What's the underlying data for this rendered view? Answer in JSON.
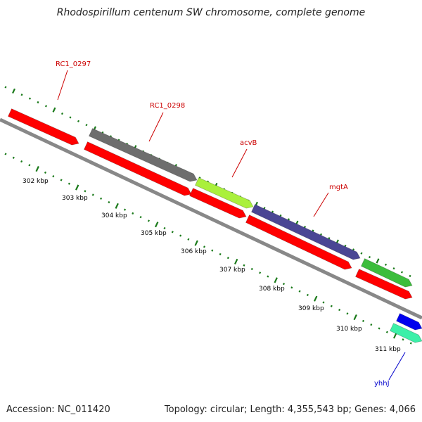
{
  "title": "Rhodospirillum centenum SW chromosome, complete genome",
  "footer": {
    "accession": "Accession: NC_011420",
    "summary": "Topology: circular; Length: 4,355,543 bp; Genes: 4,066"
  },
  "ticks": {
    "unit": "kbp",
    "labels": [
      "302 kbp",
      "303 kbp",
      "304 kbp",
      "305 kbp",
      "306 kbp",
      "307 kbp",
      "308 kbp",
      "309 kbp",
      "310 kbp",
      "311 kbp"
    ]
  },
  "colors": {
    "backbone": "#888888",
    "tick": "#1a7a1a",
    "red_gene": "#ff0000",
    "gray_gene": "#6e6e6e",
    "lime_gene": "#aaf03c",
    "purple_gene": "#4a4694",
    "green_gene": "#3cbd3c",
    "blue_gene": "#0000ee",
    "teal_gene": "#3cf0a8",
    "red_label": "#cc0000",
    "blue_label": "#0000cc"
  },
  "genes": [
    {
      "label": "RC1_0297",
      "strand": "minus",
      "color": "red"
    },
    {
      "label": "RC1_0298",
      "strand": "minus",
      "color": "red"
    },
    {
      "label": "acvB",
      "strand": "minus",
      "color": "red"
    },
    {
      "label": "mgtA",
      "strand": "minus",
      "color": "red"
    },
    {
      "label": "",
      "strand": "minus",
      "color": "red"
    },
    {
      "label": "",
      "strand": "plus",
      "color": "gray"
    },
    {
      "label": "",
      "strand": "plus",
      "color": "lime"
    },
    {
      "label": "",
      "strand": "plus",
      "color": "purple"
    },
    {
      "label": "",
      "strand": "plus",
      "color": "green"
    },
    {
      "label": "",
      "strand": "plus",
      "color": "blue"
    },
    {
      "label": "yhhJ",
      "strand": "plus",
      "color": "teal"
    }
  ]
}
